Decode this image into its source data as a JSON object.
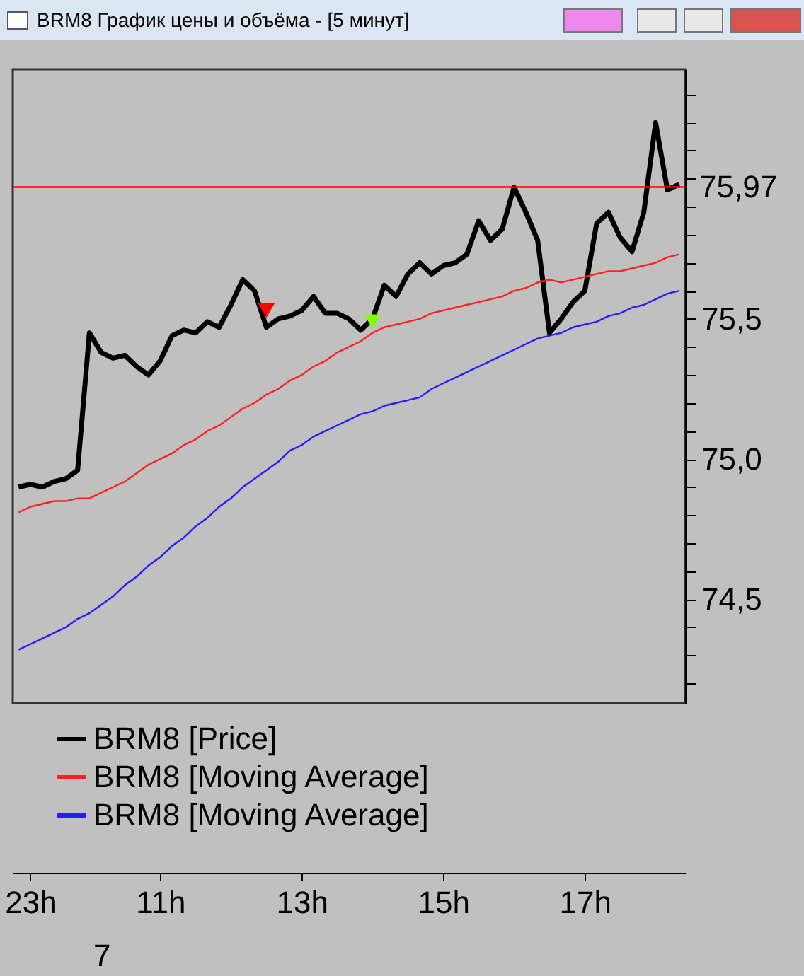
{
  "chart_data": {
    "type": "line",
    "title": "BRM8 График цены и объёма - [5 минут]",
    "categories": [
      null,
      "23h",
      null,
      null,
      null,
      null,
      null,
      null,
      null,
      null,
      null,
      null,
      "11h",
      null,
      null,
      null,
      null,
      null,
      null,
      null,
      null,
      null,
      null,
      null,
      "13h",
      null,
      null,
      null,
      null,
      null,
      null,
      null,
      null,
      null,
      null,
      null,
      "15h",
      null,
      null,
      null,
      null,
      null,
      null,
      null,
      null,
      null,
      null,
      null,
      "17h",
      null,
      null,
      null,
      null,
      null,
      null,
      null,
      null
    ],
    "ylim": [
      74.13,
      76.39
    ],
    "yticks": [
      {
        "value": 74.2,
        "label": null
      },
      {
        "value": 74.3,
        "label": null
      },
      {
        "value": 74.4,
        "label": null
      },
      {
        "value": 74.5,
        "label": "74,5"
      },
      {
        "value": 74.6,
        "label": null
      },
      {
        "value": 74.7,
        "label": null
      },
      {
        "value": 74.8,
        "label": null
      },
      {
        "value": 74.9,
        "label": null
      },
      {
        "value": 75.0,
        "label": "75,0"
      },
      {
        "value": 75.1,
        "label": null
      },
      {
        "value": 75.2,
        "label": null
      },
      {
        "value": 75.3,
        "label": null
      },
      {
        "value": 75.4,
        "label": null
      },
      {
        "value": 75.5,
        "label": "75,5"
      },
      {
        "value": 75.6,
        "label": null
      },
      {
        "value": 75.7,
        "label": null
      },
      {
        "value": 75.8,
        "label": null
      },
      {
        "value": 75.9,
        "label": null
      },
      {
        "value": 76.0,
        "label": null
      },
      {
        "value": 76.1,
        "label": null
      },
      {
        "value": 76.2,
        "label": null
      },
      {
        "value": 76.3,
        "label": null
      }
    ],
    "grid": false,
    "legend": "bottom left",
    "ref_lines": [
      {
        "axis": "y",
        "value": 75.97,
        "label": "75,97",
        "color": "#ff0000"
      }
    ],
    "annotations": [
      "7"
    ],
    "series": [
      {
        "name": "BRM8 [Price]",
        "color": "#000000",
        "values": [
          74.9,
          74.91,
          74.9,
          74.92,
          74.93,
          74.96,
          75.45,
          75.38,
          75.36,
          75.37,
          75.33,
          75.3,
          75.35,
          75.44,
          75.46,
          75.45,
          75.49,
          75.47,
          75.55,
          75.64,
          75.6,
          75.47,
          75.5,
          75.51,
          75.53,
          75.58,
          75.52,
          75.52,
          75.5,
          75.46,
          75.5,
          75.62,
          75.58,
          75.66,
          75.7,
          75.66,
          75.69,
          75.7,
          75.73,
          75.85,
          75.78,
          75.82,
          75.97,
          75.88,
          75.78,
          75.45,
          75.5,
          75.56,
          75.6,
          75.84,
          75.88,
          75.79,
          75.74,
          75.88,
          76.2,
          75.96,
          75.98
        ]
      },
      {
        "name": "BRM8 [Moving Average]",
        "color": "#ff2020",
        "values": [
          74.81,
          74.83,
          74.84,
          74.85,
          74.85,
          74.86,
          74.86,
          74.88,
          74.9,
          74.92,
          74.95,
          74.98,
          75.0,
          75.02,
          75.05,
          75.07,
          75.1,
          75.12,
          75.15,
          75.18,
          75.2,
          75.23,
          75.25,
          75.28,
          75.3,
          75.33,
          75.35,
          75.38,
          75.4,
          75.42,
          75.45,
          75.47,
          75.48,
          75.49,
          75.5,
          75.52,
          75.53,
          75.54,
          75.55,
          75.56,
          75.57,
          75.58,
          75.6,
          75.61,
          75.63,
          75.64,
          75.63,
          75.64,
          75.65,
          75.66,
          75.67,
          75.67,
          75.68,
          75.69,
          75.7,
          75.72,
          75.73
        ]
      },
      {
        "name": "BRM8 [Moving Average]",
        "color": "#2020ff",
        "values": [
          74.32,
          74.34,
          74.36,
          74.38,
          74.4,
          74.43,
          74.45,
          74.48,
          74.51,
          74.55,
          74.58,
          74.62,
          74.65,
          74.69,
          74.72,
          74.76,
          74.79,
          74.83,
          74.86,
          74.9,
          74.93,
          74.96,
          74.99,
          75.03,
          75.05,
          75.08,
          75.1,
          75.12,
          75.14,
          75.16,
          75.17,
          75.19,
          75.2,
          75.21,
          75.22,
          75.25,
          75.27,
          75.29,
          75.31,
          75.33,
          75.35,
          75.37,
          75.39,
          75.41,
          75.43,
          75.44,
          75.45,
          75.47,
          75.48,
          75.49,
          75.51,
          75.52,
          75.54,
          75.55,
          75.57,
          75.59,
          75.6
        ]
      },
      {
        "type": "scatter",
        "marker": "triangle",
        "color": "#ff0000",
        "values": [
          null,
          null,
          null,
          null,
          null,
          null,
          null,
          null,
          null,
          null,
          null,
          null,
          null,
          null,
          null,
          null,
          null,
          null,
          null,
          null,
          null,
          75.53,
          null,
          null,
          null,
          null,
          null,
          null,
          null,
          null,
          null,
          null,
          null,
          null,
          null,
          null,
          null,
          null,
          null,
          null,
          null,
          null,
          null,
          null,
          null,
          null,
          null,
          null,
          null,
          null,
          null,
          null,
          null,
          null,
          null,
          null,
          null
        ]
      },
      {
        "type": "scatter",
        "marker": "triangle",
        "color": "#80ff00",
        "values": [
          null,
          null,
          null,
          null,
          null,
          null,
          null,
          null,
          null,
          null,
          null,
          null,
          null,
          null,
          null,
          null,
          null,
          null,
          null,
          null,
          null,
          null,
          null,
          null,
          null,
          null,
          null,
          null,
          null,
          null,
          75.49,
          null,
          null,
          null,
          null,
          null,
          null,
          null,
          null,
          null,
          null,
          null,
          null,
          null,
          null,
          null,
          null,
          null,
          null,
          null,
          null,
          null,
          null,
          null,
          null,
          null,
          null
        ]
      }
    ]
  }
}
